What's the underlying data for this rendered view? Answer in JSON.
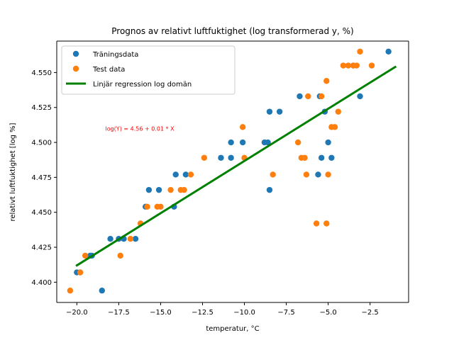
{
  "chart_data": {
    "type": "scatter",
    "title": "Prognos av relativt luftfuktighet (log transformerad y, %)",
    "xlabel": "temperatur, °C",
    "ylabel": "relativt luftfuktighet [log %]",
    "xlim": [
      -21.2,
      -0.2
    ],
    "ylim": [
      4.3855,
      4.5725
    ],
    "x_ticks": [
      -20.0,
      -17.5,
      -15.0,
      -12.5,
      -10.0,
      -7.5,
      -5.0,
      -2.5
    ],
    "x_tick_labels": [
      "−20.0",
      "−17.5",
      "−15.0",
      "−12.5",
      "−10.0",
      "−7.5",
      "−5.0",
      "−2.5"
    ],
    "y_ticks": [
      4.4,
      4.425,
      4.45,
      4.475,
      4.5,
      4.525,
      4.55
    ],
    "y_tick_labels": [
      "4.400",
      "4.425",
      "4.450",
      "4.475",
      "4.500",
      "4.525",
      "4.550"
    ],
    "legend_position": "top-left",
    "grid": false,
    "annotation": {
      "text": "log(Y) = 4.56 + 0.01 * X",
      "x": -18.3,
      "y": 4.51,
      "color": "#ff0000"
    },
    "series": [
      {
        "name": "Träningsdata",
        "kind": "scatter",
        "color": "#1f77b4",
        "points": [
          [
            -20.0,
            4.407
          ],
          [
            -19.8,
            4.407
          ],
          [
            -19.2,
            4.419
          ],
          [
            -19.1,
            4.419
          ],
          [
            -18.5,
            4.394
          ],
          [
            -18.0,
            4.431
          ],
          [
            -17.5,
            4.431
          ],
          [
            -17.2,
            4.431
          ],
          [
            -16.5,
            4.431
          ],
          [
            -15.9,
            4.454
          ],
          [
            -15.7,
            4.466
          ],
          [
            -15.1,
            4.466
          ],
          [
            -14.2,
            4.454
          ],
          [
            -14.1,
            4.477
          ],
          [
            -13.5,
            4.477
          ],
          [
            -11.4,
            4.489
          ],
          [
            -10.8,
            4.489
          ],
          [
            -10.8,
            4.5
          ],
          [
            -10.1,
            4.5
          ],
          [
            -8.8,
            4.5
          ],
          [
            -8.6,
            4.5
          ],
          [
            -8.5,
            4.522
          ],
          [
            -8.5,
            4.466
          ],
          [
            -7.9,
            4.522
          ],
          [
            -6.7,
            4.533
          ],
          [
            -5.6,
            4.477
          ],
          [
            -5.5,
            4.533
          ],
          [
            -5.4,
            4.489
          ],
          [
            -5.2,
            4.522
          ],
          [
            -5.0,
            4.5
          ],
          [
            -4.8,
            4.489
          ],
          [
            -3.5,
            4.555
          ],
          [
            -3.1,
            4.533
          ],
          [
            -1.4,
            4.565
          ]
        ]
      },
      {
        "name": "Test data",
        "kind": "scatter",
        "color": "#ff7f0e",
        "points": [
          [
            -20.4,
            4.394
          ],
          [
            -19.8,
            4.407
          ],
          [
            -19.5,
            4.419
          ],
          [
            -17.4,
            4.419
          ],
          [
            -16.8,
            4.431
          ],
          [
            -16.2,
            4.442
          ],
          [
            -15.8,
            4.454
          ],
          [
            -15.2,
            4.454
          ],
          [
            -15.0,
            4.454
          ],
          [
            -14.4,
            4.466
          ],
          [
            -13.8,
            4.466
          ],
          [
            -13.6,
            4.466
          ],
          [
            -13.2,
            4.477
          ],
          [
            -12.4,
            4.489
          ],
          [
            -10.1,
            4.511
          ],
          [
            -10.0,
            4.489
          ],
          [
            -8.3,
            4.477
          ],
          [
            -6.8,
            4.5
          ],
          [
            -6.6,
            4.489
          ],
          [
            -6.4,
            4.489
          ],
          [
            -6.3,
            4.477
          ],
          [
            -6.2,
            4.533
          ],
          [
            -5.7,
            4.442
          ],
          [
            -5.4,
            4.533
          ],
          [
            -5.1,
            4.544
          ],
          [
            -5.1,
            4.442
          ],
          [
            -5.0,
            4.477
          ],
          [
            -4.8,
            4.511
          ],
          [
            -4.6,
            4.511
          ],
          [
            -4.4,
            4.522
          ],
          [
            -4.1,
            4.555
          ],
          [
            -3.8,
            4.555
          ],
          [
            -3.5,
            4.555
          ],
          [
            -3.3,
            4.555
          ],
          [
            -3.1,
            4.565
          ],
          [
            -2.4,
            4.555
          ]
        ]
      },
      {
        "name": "Linjär regression log domän",
        "kind": "line",
        "color": "#008000",
        "points": [
          [
            -20.0,
            4.412
          ],
          [
            -1.0,
            4.554
          ]
        ]
      }
    ]
  }
}
